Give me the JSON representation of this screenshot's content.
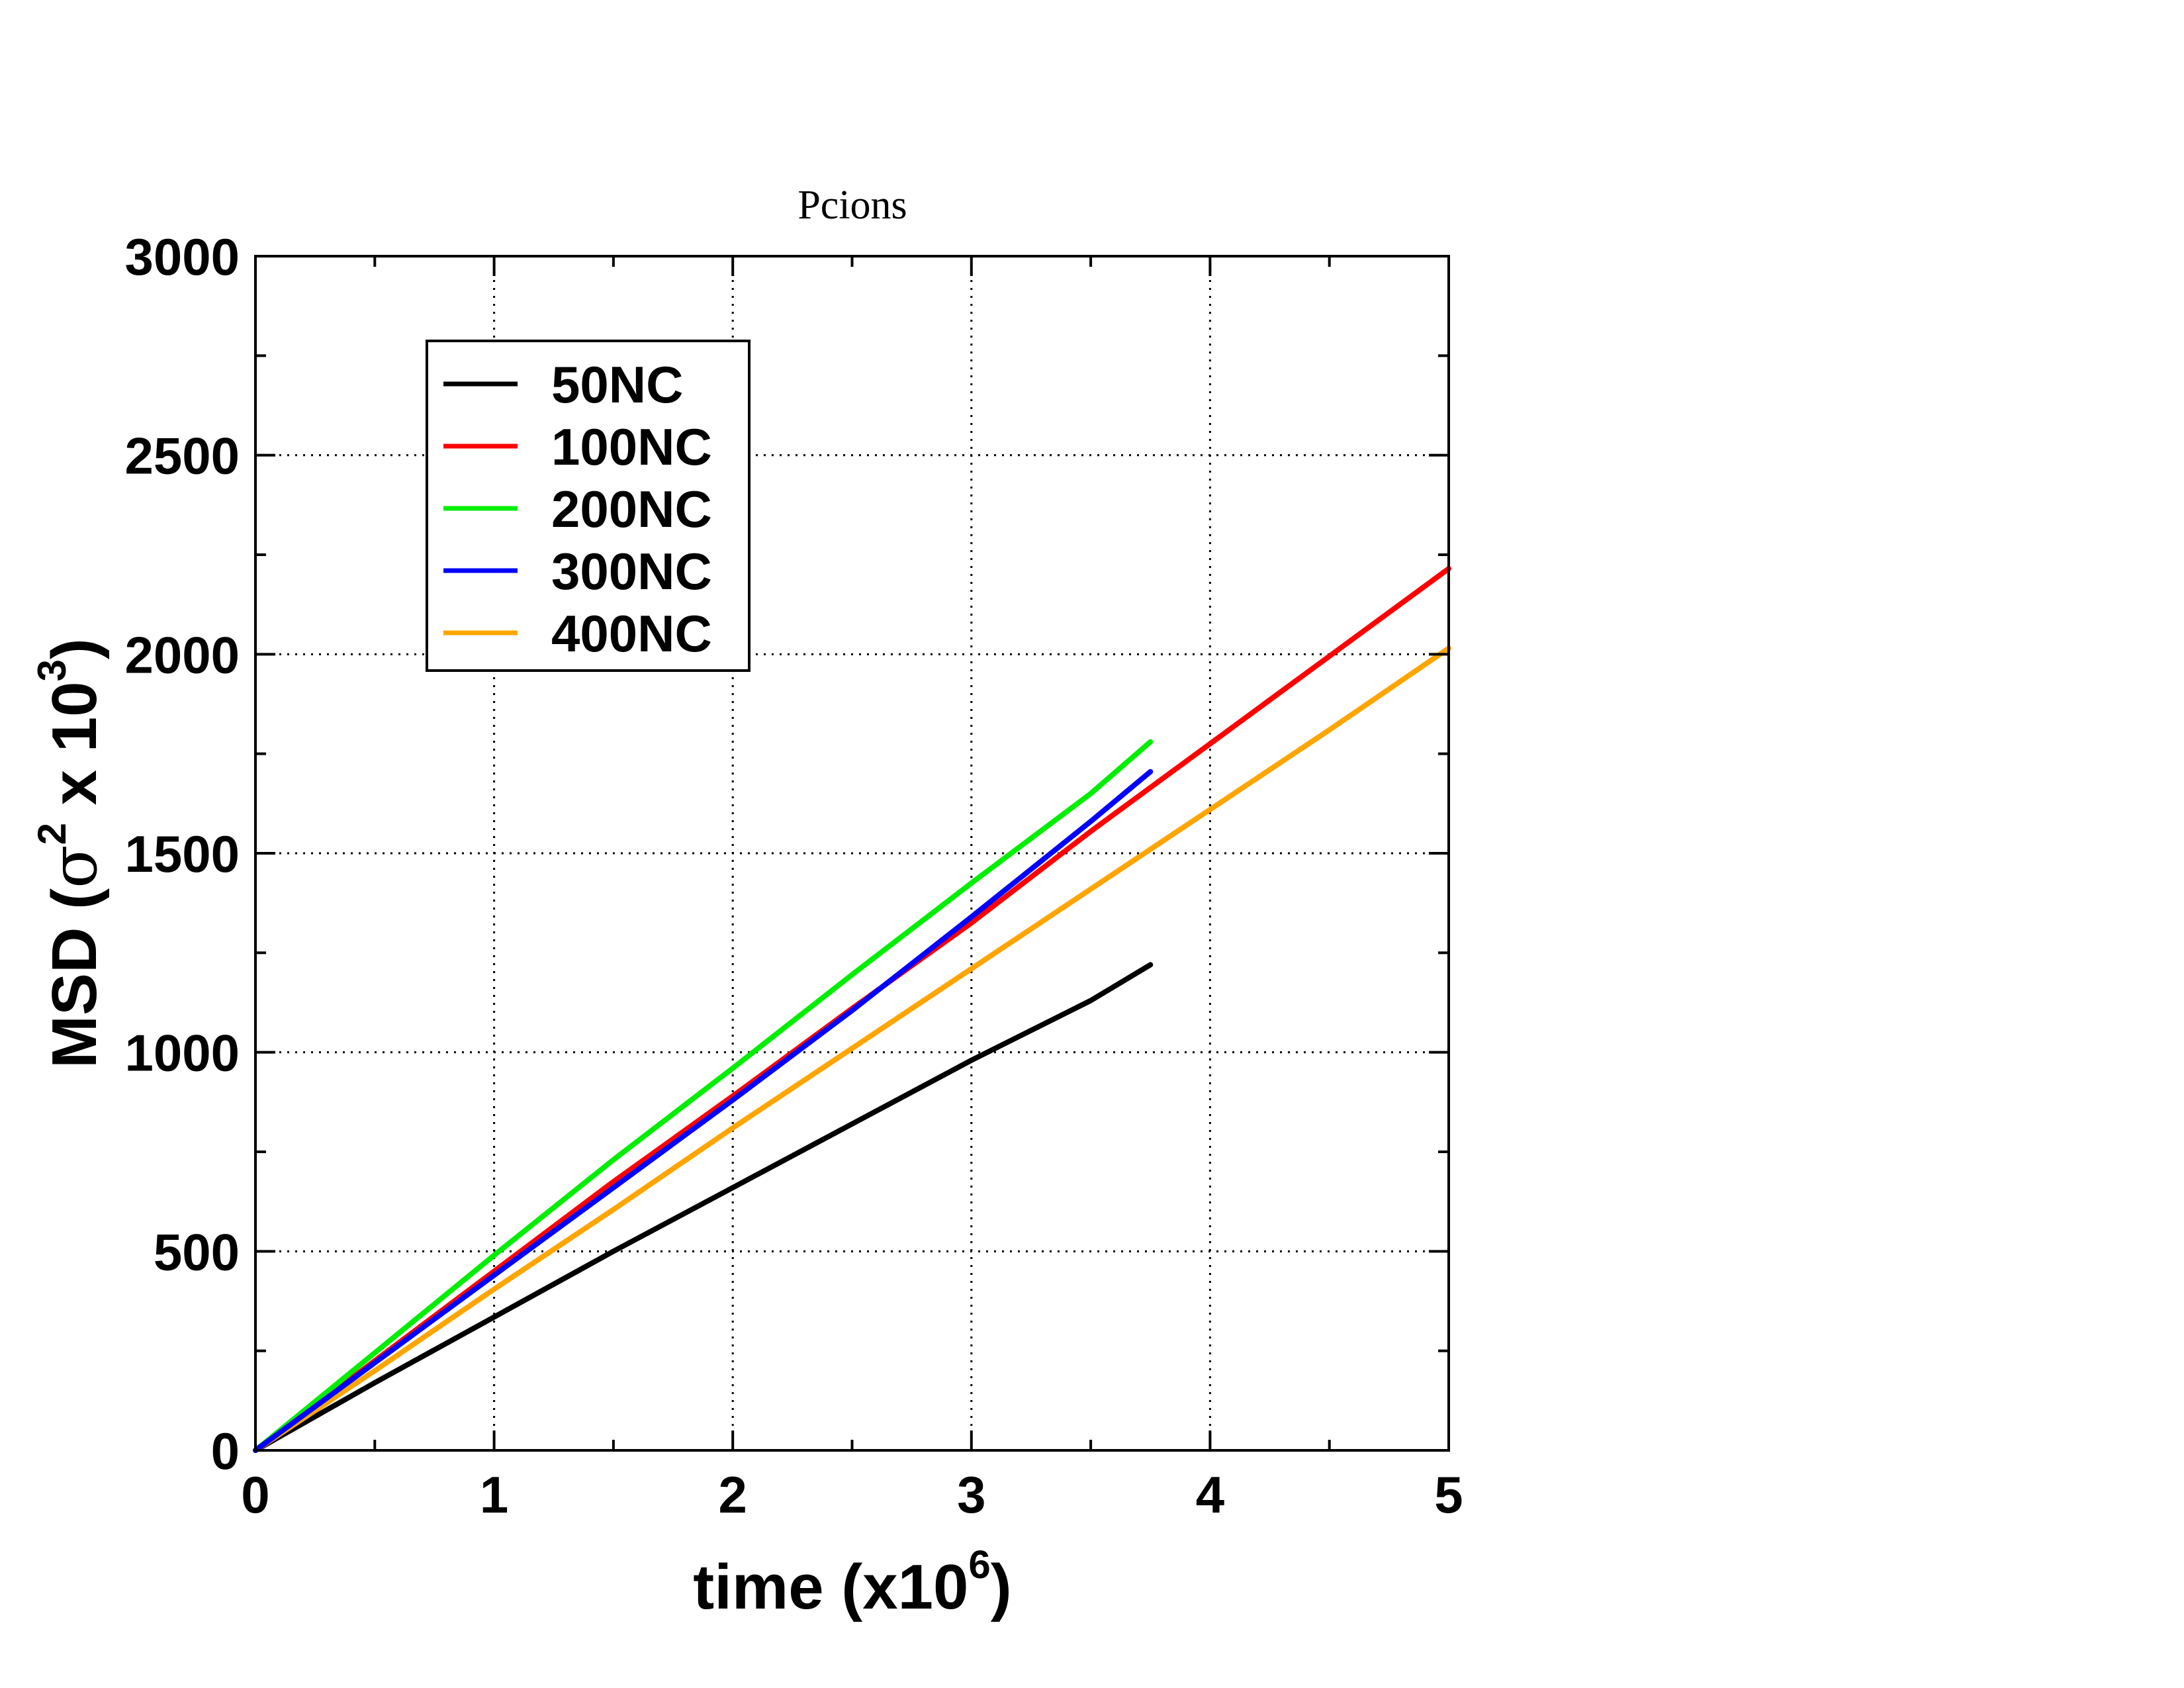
{
  "chart_data": {
    "type": "line",
    "title": "Pcions",
    "xlabel": {
      "main": "time (x10",
      "sup": "6",
      "close": ")"
    },
    "ylabel": {
      "main": "MSD (",
      "sigma": "σ",
      "sup1": "2",
      "mid": " x 10",
      "sup2": "3",
      "close": ")"
    },
    "xlim": [
      0,
      5
    ],
    "ylim": [
      0,
      3000
    ],
    "x_ticks": [
      0,
      1,
      2,
      3,
      4,
      5
    ],
    "x_tick_labels": [
      "0",
      "1",
      "2",
      "3",
      "4",
      "5"
    ],
    "y_ticks": [
      0,
      500,
      1000,
      1500,
      2000,
      2500,
      3000
    ],
    "y_tick_labels": [
      "0",
      "500",
      "1000",
      "1500",
      "2000",
      "2500",
      "3000"
    ],
    "grid": true,
    "legend_placement": "top-left",
    "series": [
      {
        "name": "50NC",
        "color": "#000000",
        "points": [
          [
            0,
            0
          ],
          [
            0.5,
            170
          ],
          [
            1,
            335
          ],
          [
            1.5,
            500
          ],
          [
            2,
            660
          ],
          [
            2.5,
            820
          ],
          [
            3,
            980
          ],
          [
            3.5,
            1130
          ],
          [
            3.75,
            1220
          ]
        ]
      },
      {
        "name": "100NC",
        "color": "#ff0000",
        "points": [
          [
            0,
            0
          ],
          [
            0.5,
            225
          ],
          [
            1,
            450
          ],
          [
            1.5,
            675
          ],
          [
            2,
            890
          ],
          [
            2.5,
            1110
          ],
          [
            3,
            1325
          ],
          [
            3.5,
            1555
          ],
          [
            4,
            1775
          ],
          [
            4.5,
            1995
          ],
          [
            5,
            2215
          ]
        ]
      },
      {
        "name": "200NC",
        "color": "#00ee00",
        "points": [
          [
            0,
            0
          ],
          [
            0.5,
            245
          ],
          [
            1,
            490
          ],
          [
            1.5,
            730
          ],
          [
            2,
            960
          ],
          [
            2.5,
            1195
          ],
          [
            3,
            1425
          ],
          [
            3.5,
            1650
          ],
          [
            3.75,
            1780
          ]
        ]
      },
      {
        "name": "300NC",
        "color": "#0000ff",
        "points": [
          [
            0,
            0
          ],
          [
            0.5,
            220
          ],
          [
            1,
            440
          ],
          [
            1.5,
            660
          ],
          [
            2,
            880
          ],
          [
            2.5,
            1105
          ],
          [
            3,
            1340
          ],
          [
            3.5,
            1580
          ],
          [
            3.75,
            1705
          ]
        ]
      },
      {
        "name": "400NC",
        "color": "#ffa500",
        "points": [
          [
            0,
            0
          ],
          [
            0.5,
            200
          ],
          [
            1,
            405
          ],
          [
            1.5,
            605
          ],
          [
            2,
            810
          ],
          [
            2.5,
            1010
          ],
          [
            3,
            1210
          ],
          [
            3.5,
            1410
          ],
          [
            4,
            1610
          ],
          [
            4.5,
            1810
          ],
          [
            5,
            2015
          ]
        ]
      }
    ]
  }
}
